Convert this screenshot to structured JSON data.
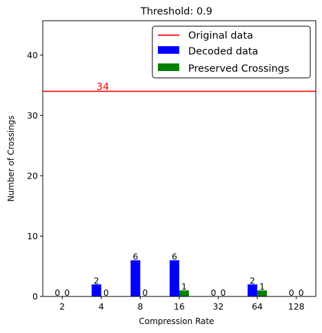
{
  "chart_data": {
    "type": "bar",
    "title": "Threshold: 0.9",
    "xlabel": "Compression Rate",
    "ylabel": "Number of Crossings",
    "categories": [
      "2",
      "4",
      "8",
      "16",
      "32",
      "64",
      "128"
    ],
    "ylim": [
      0,
      45.7
    ],
    "yticks": [
      0,
      10,
      20,
      30,
      40
    ],
    "grid": false,
    "legend_position": "top-right",
    "series": [
      {
        "name": "Decoded data",
        "color": "#0000ff",
        "values": [
          0,
          2,
          6,
          6,
          0,
          2,
          0
        ]
      },
      {
        "name": "Preserved Crossings",
        "color": "#008000",
        "values": [
          0,
          0,
          0,
          1,
          0,
          1,
          0
        ]
      }
    ],
    "reference_line": {
      "name": "Original data",
      "value": 34,
      "label": "34",
      "color": "#ff0000"
    }
  }
}
